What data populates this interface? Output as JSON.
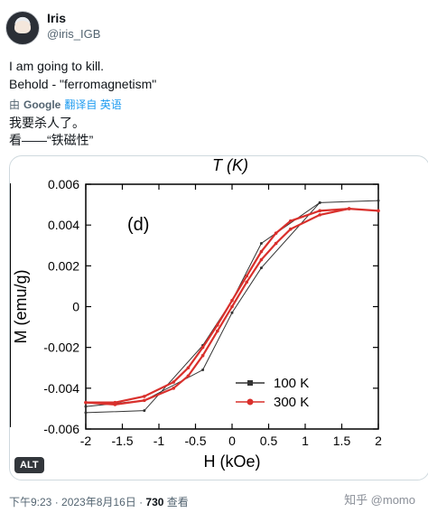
{
  "user": {
    "name": "Iris",
    "handle": "@iris_IGB"
  },
  "tweet": {
    "line1": "I am going to kill.",
    "line2": "Behold - \"ferromagnetism\"",
    "translated_line1": "我要杀人了。",
    "translated_line2": "看——“铁磁性”"
  },
  "translate": {
    "prefix": "由",
    "brand": "Google",
    "action": "翻译自 英语"
  },
  "media": {
    "alt_badge": "ALT"
  },
  "meta": {
    "time": "下午9:23",
    "date": "2023年8月16日",
    "views_count": "730",
    "views_label": "查看"
  },
  "watermark": "知乎 @momo",
  "chart_data": {
    "type": "line",
    "title_top": "T (K)",
    "panel_label": "(d)",
    "xlabel": "H (kOe)",
    "ylabel": "M (emu/g)",
    "xlim": [
      -2,
      2
    ],
    "ylim": [
      -0.006,
      0.006
    ],
    "xticks": [
      "-2",
      "-1.5",
      "-1",
      "-0.5",
      "0",
      "0.5",
      "1",
      "1.5",
      "2"
    ],
    "yticks": [
      "-0.006",
      "-0.004",
      "-0.002",
      "0",
      "0.002",
      "0.004",
      "0.006"
    ],
    "legend_position": "lower-right",
    "series": [
      {
        "name": "100 K",
        "color": "#333333",
        "x": [
          -2,
          -1.2,
          -0.4,
          0.0,
          0.4,
          1.2,
          2,
          1.2,
          0.4,
          0.0,
          -0.4,
          -1.2,
          -2
        ],
        "y": [
          -0.0052,
          -0.0051,
          -0.0019,
          0.0003,
          0.0031,
          0.0051,
          0.0052,
          0.0051,
          0.0019,
          -0.0003,
          -0.0031,
          -0.0046,
          -0.0049
        ]
      },
      {
        "name": "300 K",
        "color": "#d9302c",
        "x": [
          -2,
          -1.6,
          -1.2,
          -0.8,
          -0.6,
          -0.4,
          -0.2,
          0.0,
          0.2,
          0.4,
          0.6,
          0.8,
          1.2,
          1.6,
          2,
          1.6,
          1.2,
          0.8,
          0.6,
          0.4,
          0.2,
          0.0,
          -0.2,
          -0.4,
          -0.6,
          -0.8,
          -1.2,
          -1.6,
          -2
        ],
        "y": [
          -0.0047,
          -0.0048,
          -0.0046,
          -0.004,
          -0.0034,
          -0.0024,
          -0.0012,
          0.0,
          0.0012,
          0.0023,
          0.0031,
          0.0038,
          0.0045,
          0.0048,
          0.0047,
          0.0048,
          0.0047,
          0.0042,
          0.0036,
          0.0027,
          0.0015,
          0.0003,
          -0.0009,
          -0.002,
          -0.003,
          -0.0037,
          -0.0044,
          -0.0047,
          -0.0047
        ]
      }
    ]
  }
}
